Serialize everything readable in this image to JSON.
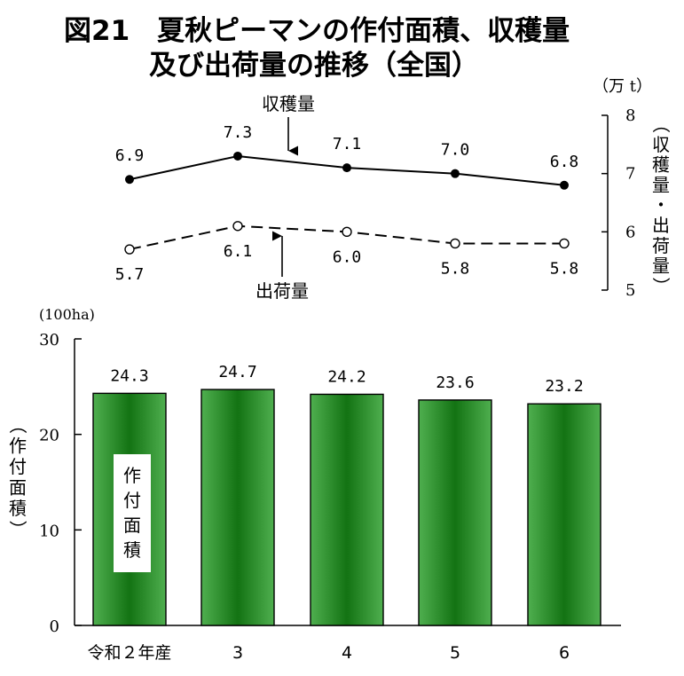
{
  "title_line1": "図21　夏秋ピーマンの作付面積、収穫量",
  "title_line2": "及び出荷量の推移（全国）",
  "line_unit": "（万 t）",
  "line_axis_label": [
    "（",
    "収",
    "穫",
    "量",
    "・",
    "出",
    "荷",
    "量",
    "）"
  ],
  "bar_unit": "(100ha)",
  "bar_axis_label": [
    "（",
    "作",
    "付",
    "面",
    "積",
    "）"
  ],
  "bar_inner_label": [
    "作",
    "付",
    "面",
    "積"
  ],
  "harvest_label": "収穫量",
  "shipment_label": "出荷量",
  "chart_data": [
    {
      "type": "line",
      "categories": [
        "令和２年産",
        "3",
        "4",
        "5",
        "6"
      ],
      "ylim": [
        5,
        8
      ],
      "yticks": [
        5,
        6,
        7,
        8
      ],
      "series": [
        {
          "name": "収穫量",
          "values": [
            6.9,
            7.3,
            7.1,
            7.0,
            6.8
          ],
          "labels": [
            "6.9",
            "7.3",
            "7.1",
            "7.0",
            "6.8"
          ],
          "style": "solid",
          "marker": "filled"
        },
        {
          "name": "出荷量",
          "values": [
            5.7,
            6.1,
            6.0,
            5.8,
            5.8
          ],
          "labels": [
            "5.7",
            "6.1",
            "6.0",
            "5.8",
            "5.8"
          ],
          "style": "dashed",
          "marker": "open"
        }
      ]
    },
    {
      "type": "bar",
      "categories": [
        "令和２年産",
        "3",
        "4",
        "5",
        "6"
      ],
      "values": [
        24.3,
        24.7,
        24.2,
        23.6,
        23.2
      ],
      "labels": [
        "24.3",
        "24.7",
        "24.2",
        "23.6",
        "23.2"
      ],
      "ylim": [
        0,
        30
      ],
      "yticks": [
        0,
        10,
        20,
        30
      ],
      "color": "#2e8b2e"
    }
  ]
}
